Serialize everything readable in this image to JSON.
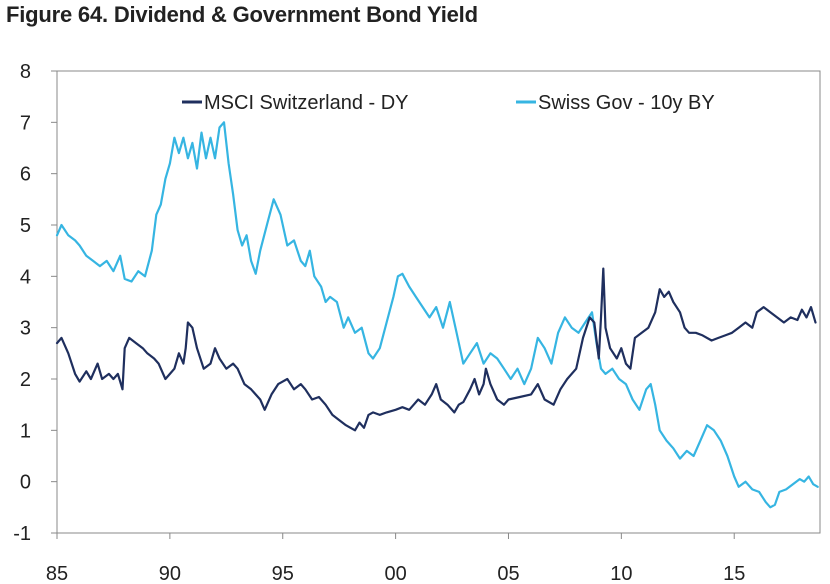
{
  "chart_data": {
    "type": "line",
    "title": "Figure 64. Dividend & Government Bond Yield",
    "xlabel": "",
    "ylabel": "",
    "xlim": [
      1985,
      2018.8
    ],
    "ylim": [
      -1,
      8
    ],
    "x_ticks": [
      1985,
      1990,
      1995,
      2000,
      2005,
      2010,
      2015
    ],
    "x_tick_labels": [
      "85",
      "90",
      "95",
      "00",
      "05",
      "10",
      "15"
    ],
    "y_ticks": [
      -1,
      0,
      1,
      2,
      3,
      4,
      5,
      6,
      7,
      8
    ],
    "y_tick_labels": [
      "-1",
      "0",
      "1",
      "2",
      "3",
      "4",
      "5",
      "6",
      "7",
      "8"
    ],
    "grid": false,
    "legend_position": "top",
    "series": [
      {
        "name": "MSCI Switzerland - DY",
        "color": "#1f2f5e",
        "points": [
          [
            1985.0,
            2.7
          ],
          [
            1985.2,
            2.8
          ],
          [
            1985.5,
            2.5
          ],
          [
            1985.8,
            2.1
          ],
          [
            1986.0,
            1.95
          ],
          [
            1986.3,
            2.15
          ],
          [
            1986.5,
            2.0
          ],
          [
            1986.8,
            2.3
          ],
          [
            1987.0,
            2.0
          ],
          [
            1987.3,
            2.1
          ],
          [
            1987.5,
            2.0
          ],
          [
            1987.7,
            2.1
          ],
          [
            1987.9,
            1.8
          ],
          [
            1988.0,
            2.6
          ],
          [
            1988.2,
            2.8
          ],
          [
            1988.5,
            2.7
          ],
          [
            1988.8,
            2.6
          ],
          [
            1989.0,
            2.5
          ],
          [
            1989.3,
            2.4
          ],
          [
            1989.5,
            2.3
          ],
          [
            1989.8,
            2.0
          ],
          [
            1990.0,
            2.1
          ],
          [
            1990.2,
            2.2
          ],
          [
            1990.4,
            2.5
          ],
          [
            1990.6,
            2.3
          ],
          [
            1990.7,
            2.6
          ],
          [
            1990.8,
            3.1
          ],
          [
            1991.0,
            3.0
          ],
          [
            1991.2,
            2.6
          ],
          [
            1991.5,
            2.2
          ],
          [
            1991.8,
            2.3
          ],
          [
            1992.0,
            2.6
          ],
          [
            1992.2,
            2.4
          ],
          [
            1992.5,
            2.2
          ],
          [
            1992.8,
            2.3
          ],
          [
            1993.0,
            2.2
          ],
          [
            1993.3,
            1.9
          ],
          [
            1993.6,
            1.8
          ],
          [
            1994.0,
            1.6
          ],
          [
            1994.2,
            1.4
          ],
          [
            1994.5,
            1.7
          ],
          [
            1994.8,
            1.9
          ],
          [
            1995.2,
            2.0
          ],
          [
            1995.5,
            1.8
          ],
          [
            1995.8,
            1.9
          ],
          [
            1996.0,
            1.8
          ],
          [
            1996.3,
            1.6
          ],
          [
            1996.6,
            1.65
          ],
          [
            1996.9,
            1.5
          ],
          [
            1997.2,
            1.3
          ],
          [
            1997.5,
            1.2
          ],
          [
            1997.8,
            1.1
          ],
          [
            1998.0,
            1.05
          ],
          [
            1998.2,
            1.0
          ],
          [
            1998.4,
            1.15
          ],
          [
            1998.6,
            1.05
          ],
          [
            1998.8,
            1.3
          ],
          [
            1999.0,
            1.35
          ],
          [
            1999.3,
            1.3
          ],
          [
            1999.6,
            1.35
          ],
          [
            2000.0,
            1.4
          ],
          [
            2000.3,
            1.45
          ],
          [
            2000.6,
            1.4
          ],
          [
            2000.8,
            1.5
          ],
          [
            2001.0,
            1.6
          ],
          [
            2001.3,
            1.5
          ],
          [
            2001.6,
            1.7
          ],
          [
            2001.8,
            1.9
          ],
          [
            2002.0,
            1.6
          ],
          [
            2002.3,
            1.5
          ],
          [
            2002.6,
            1.35
          ],
          [
            2002.8,
            1.5
          ],
          [
            2003.0,
            1.55
          ],
          [
            2003.3,
            1.8
          ],
          [
            2003.5,
            2.0
          ],
          [
            2003.7,
            1.7
          ],
          [
            2003.9,
            1.9
          ],
          [
            2004.0,
            2.2
          ],
          [
            2004.2,
            1.9
          ],
          [
            2004.5,
            1.6
          ],
          [
            2004.8,
            1.5
          ],
          [
            2005.0,
            1.6
          ],
          [
            2005.5,
            1.65
          ],
          [
            2006.0,
            1.7
          ],
          [
            2006.3,
            1.9
          ],
          [
            2006.6,
            1.6
          ],
          [
            2007.0,
            1.5
          ],
          [
            2007.3,
            1.8
          ],
          [
            2007.6,
            2.0
          ],
          [
            2008.0,
            2.2
          ],
          [
            2008.3,
            2.8
          ],
          [
            2008.6,
            3.2
          ],
          [
            2008.8,
            3.1
          ],
          [
            2009.0,
            2.4
          ],
          [
            2009.1,
            3.2
          ],
          [
            2009.2,
            4.15
          ],
          [
            2009.3,
            3.0
          ],
          [
            2009.5,
            2.6
          ],
          [
            2009.8,
            2.4
          ],
          [
            2010.0,
            2.6
          ],
          [
            2010.2,
            2.3
          ],
          [
            2010.4,
            2.2
          ],
          [
            2010.6,
            2.8
          ],
          [
            2010.9,
            2.9
          ],
          [
            2011.2,
            3.0
          ],
          [
            2011.5,
            3.3
          ],
          [
            2011.7,
            3.75
          ],
          [
            2011.9,
            3.6
          ],
          [
            2012.1,
            3.7
          ],
          [
            2012.3,
            3.5
          ],
          [
            2012.6,
            3.3
          ],
          [
            2012.8,
            3.0
          ],
          [
            2013.0,
            2.9
          ],
          [
            2013.3,
            2.9
          ],
          [
            2013.6,
            2.85
          ],
          [
            2014.0,
            2.75
          ],
          [
            2014.3,
            2.8
          ],
          [
            2014.6,
            2.85
          ],
          [
            2014.9,
            2.9
          ],
          [
            2015.2,
            3.0
          ],
          [
            2015.5,
            3.1
          ],
          [
            2015.8,
            3.0
          ],
          [
            2016.0,
            3.3
          ],
          [
            2016.3,
            3.4
          ],
          [
            2016.6,
            3.3
          ],
          [
            2016.9,
            3.2
          ],
          [
            2017.2,
            3.1
          ],
          [
            2017.5,
            3.2
          ],
          [
            2017.8,
            3.15
          ],
          [
            2018.0,
            3.35
          ],
          [
            2018.2,
            3.2
          ],
          [
            2018.4,
            3.4
          ],
          [
            2018.6,
            3.1
          ]
        ]
      },
      {
        "name": "Swiss Gov - 10y BY",
        "color": "#36b5e2",
        "points": [
          [
            1985.0,
            4.8
          ],
          [
            1985.2,
            5.0
          ],
          [
            1985.5,
            4.8
          ],
          [
            1985.8,
            4.7
          ],
          [
            1986.0,
            4.6
          ],
          [
            1986.3,
            4.4
          ],
          [
            1986.6,
            4.3
          ],
          [
            1986.9,
            4.2
          ],
          [
            1987.2,
            4.3
          ],
          [
            1987.5,
            4.1
          ],
          [
            1987.8,
            4.4
          ],
          [
            1988.0,
            3.95
          ],
          [
            1988.3,
            3.9
          ],
          [
            1988.6,
            4.1
          ],
          [
            1988.9,
            4.0
          ],
          [
            1989.2,
            4.5
          ],
          [
            1989.4,
            5.2
          ],
          [
            1989.6,
            5.4
          ],
          [
            1989.8,
            5.9
          ],
          [
            1990.0,
            6.2
          ],
          [
            1990.2,
            6.7
          ],
          [
            1990.4,
            6.4
          ],
          [
            1990.6,
            6.7
          ],
          [
            1990.8,
            6.3
          ],
          [
            1991.0,
            6.6
          ],
          [
            1991.2,
            6.1
          ],
          [
            1991.4,
            6.8
          ],
          [
            1991.6,
            6.3
          ],
          [
            1991.8,
            6.7
          ],
          [
            1992.0,
            6.3
          ],
          [
            1992.2,
            6.9
          ],
          [
            1992.4,
            7.0
          ],
          [
            1992.6,
            6.2
          ],
          [
            1992.8,
            5.6
          ],
          [
            1993.0,
            4.9
          ],
          [
            1993.2,
            4.6
          ],
          [
            1993.4,
            4.8
          ],
          [
            1993.6,
            4.3
          ],
          [
            1993.8,
            4.05
          ],
          [
            1994.0,
            4.5
          ],
          [
            1994.3,
            5.0
          ],
          [
            1994.6,
            5.5
          ],
          [
            1994.9,
            5.2
          ],
          [
            1995.2,
            4.6
          ],
          [
            1995.5,
            4.7
          ],
          [
            1995.8,
            4.3
          ],
          [
            1996.0,
            4.2
          ],
          [
            1996.2,
            4.5
          ],
          [
            1996.4,
            4.0
          ],
          [
            1996.7,
            3.8
          ],
          [
            1996.9,
            3.5
          ],
          [
            1997.1,
            3.6
          ],
          [
            1997.4,
            3.5
          ],
          [
            1997.7,
            3.0
          ],
          [
            1997.9,
            3.2
          ],
          [
            1998.2,
            2.9
          ],
          [
            1998.5,
            3.0
          ],
          [
            1998.8,
            2.5
          ],
          [
            1999.0,
            2.4
          ],
          [
            1999.3,
            2.6
          ],
          [
            1999.6,
            3.1
          ],
          [
            1999.9,
            3.6
          ],
          [
            2000.1,
            4.0
          ],
          [
            2000.3,
            4.05
          ],
          [
            2000.6,
            3.8
          ],
          [
            2000.9,
            3.6
          ],
          [
            2001.2,
            3.4
          ],
          [
            2001.5,
            3.2
          ],
          [
            2001.8,
            3.4
          ],
          [
            2002.1,
            3.0
          ],
          [
            2002.4,
            3.5
          ],
          [
            2002.7,
            2.9
          ],
          [
            2003.0,
            2.3
          ],
          [
            2003.3,
            2.5
          ],
          [
            2003.6,
            2.7
          ],
          [
            2003.9,
            2.3
          ],
          [
            2004.2,
            2.5
          ],
          [
            2004.5,
            2.4
          ],
          [
            2004.8,
            2.2
          ],
          [
            2005.1,
            2.0
          ],
          [
            2005.4,
            2.2
          ],
          [
            2005.7,
            1.9
          ],
          [
            2006.0,
            2.2
          ],
          [
            2006.3,
            2.8
          ],
          [
            2006.6,
            2.6
          ],
          [
            2006.9,
            2.3
          ],
          [
            2007.2,
            2.9
          ],
          [
            2007.5,
            3.2
          ],
          [
            2007.8,
            3.0
          ],
          [
            2008.1,
            2.9
          ],
          [
            2008.4,
            3.1
          ],
          [
            2008.7,
            3.3
          ],
          [
            2008.9,
            2.7
          ],
          [
            2009.1,
            2.2
          ],
          [
            2009.3,
            2.1
          ],
          [
            2009.6,
            2.2
          ],
          [
            2009.9,
            2.0
          ],
          [
            2010.2,
            1.9
          ],
          [
            2010.5,
            1.6
          ],
          [
            2010.8,
            1.4
          ],
          [
            2011.1,
            1.8
          ],
          [
            2011.3,
            1.9
          ],
          [
            2011.5,
            1.5
          ],
          [
            2011.7,
            1.0
          ],
          [
            2012.0,
            0.8
          ],
          [
            2012.3,
            0.65
          ],
          [
            2012.6,
            0.45
          ],
          [
            2012.9,
            0.6
          ],
          [
            2013.2,
            0.5
          ],
          [
            2013.5,
            0.8
          ],
          [
            2013.8,
            1.1
          ],
          [
            2014.1,
            1.0
          ],
          [
            2014.4,
            0.8
          ],
          [
            2014.7,
            0.5
          ],
          [
            2015.0,
            0.1
          ],
          [
            2015.2,
            -0.1
          ],
          [
            2015.5,
            0.0
          ],
          [
            2015.8,
            -0.15
          ],
          [
            2016.1,
            -0.2
          ],
          [
            2016.4,
            -0.4
          ],
          [
            2016.6,
            -0.5
          ],
          [
            2016.8,
            -0.45
          ],
          [
            2017.0,
            -0.2
          ],
          [
            2017.3,
            -0.15
          ],
          [
            2017.6,
            -0.05
          ],
          [
            2017.9,
            0.05
          ],
          [
            2018.1,
            0.0
          ],
          [
            2018.3,
            0.1
          ],
          [
            2018.5,
            -0.05
          ],
          [
            2018.7,
            -0.1
          ]
        ]
      }
    ]
  }
}
